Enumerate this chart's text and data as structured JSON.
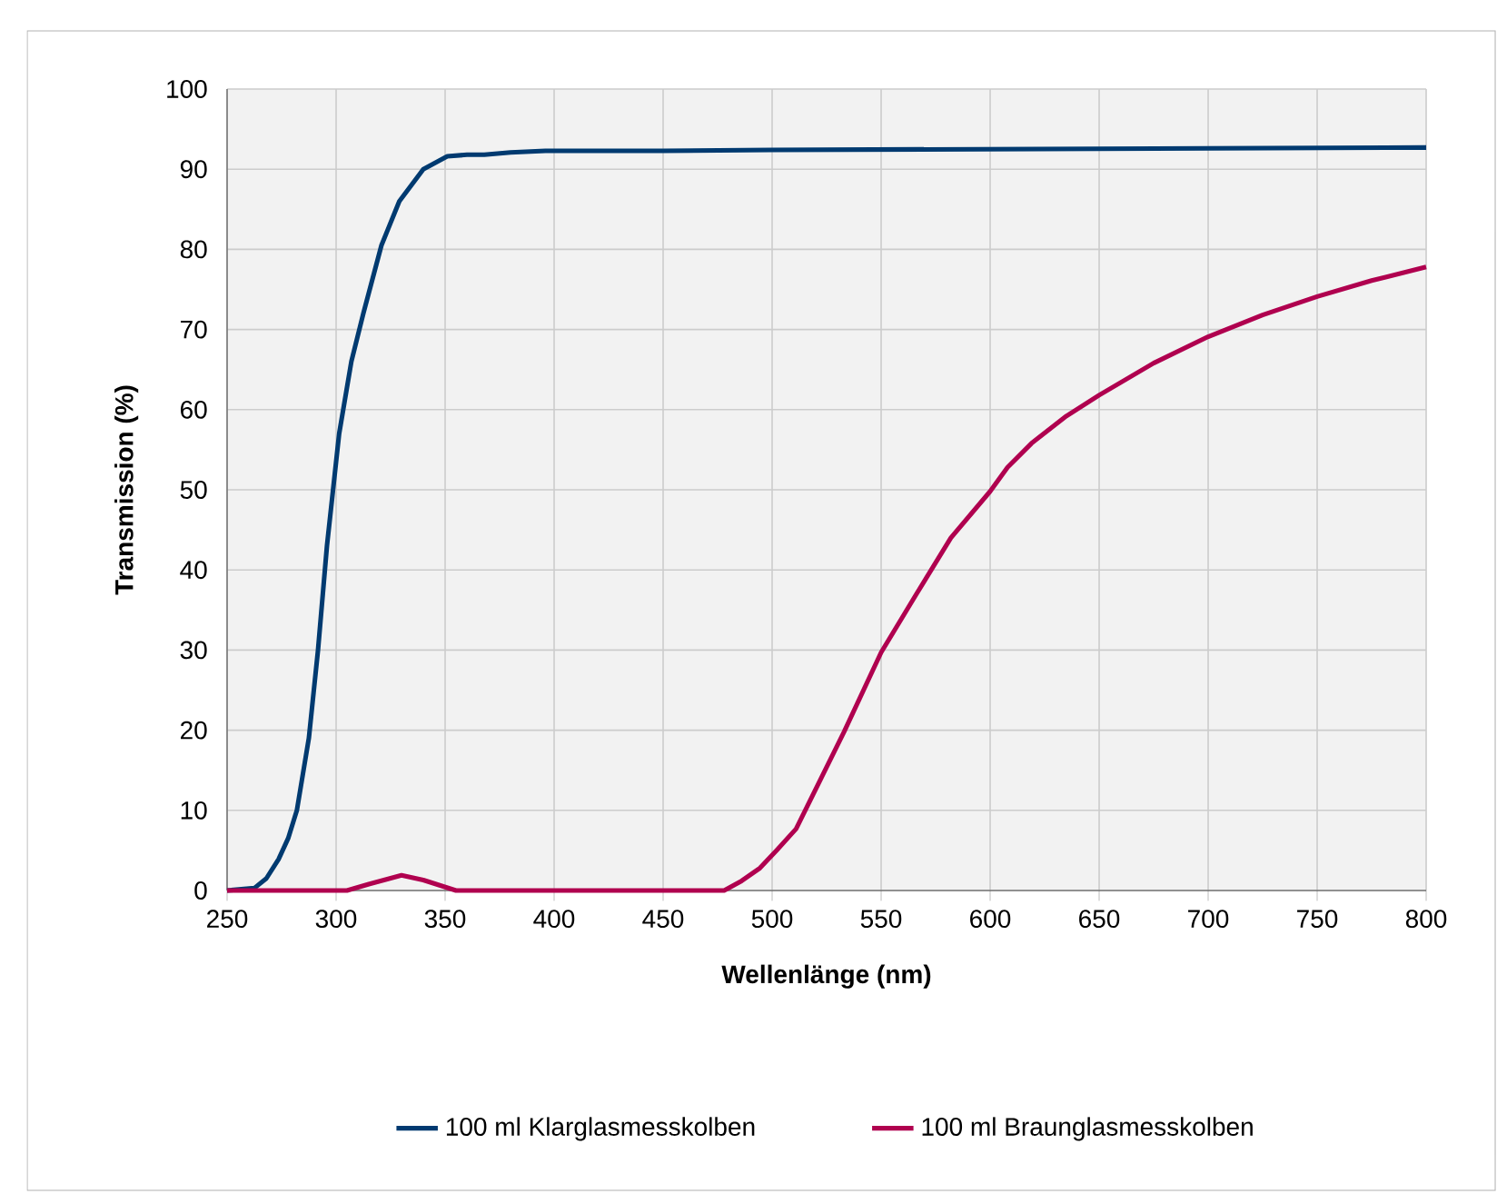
{
  "chart_data": {
    "type": "line",
    "xlabel": "Wellenlänge (nm)",
    "ylabel": "Transmission  (%)",
    "xlim": [
      250,
      800
    ],
    "ylim": [
      0,
      100
    ],
    "xticks": [
      250,
      300,
      350,
      400,
      450,
      500,
      550,
      600,
      650,
      700,
      750,
      800
    ],
    "yticks": [
      0,
      10,
      20,
      30,
      40,
      50,
      60,
      70,
      80,
      90,
      100
    ],
    "grid": true,
    "legend": "bottom",
    "marker": "none",
    "line_style": "solid",
    "series": [
      {
        "name": "100 ml Klarglasmesskolben",
        "color": "#003a70",
        "x": [
          250,
          262.5,
          268,
          273.6,
          278,
          282,
          287.5,
          291.7,
          295.8,
          301.4,
          307,
          312.5,
          320.8,
          329,
          340,
          351,
          360,
          368,
          380,
          396,
          450,
          500,
          600,
          700,
          800
        ],
        "values": [
          0,
          0.3,
          1.5,
          3.9,
          6.5,
          10,
          19,
          30,
          43,
          57,
          66,
          72,
          80.5,
          86,
          90,
          91.6,
          91.8,
          91.8,
          92.1,
          92.3,
          92.3,
          92.4,
          92.5,
          92.6,
          92.7
        ]
      },
      {
        "name": "100 ml Braunglasmesskolben",
        "color": "#b0004f",
        "x": [
          250,
          305,
          315,
          330,
          340,
          355,
          400,
          478,
          486,
          494.4,
          502,
          511,
          533,
          550,
          566,
          582,
          600,
          608,
          619,
          635,
          650,
          675,
          700,
          725,
          750,
          775,
          800
        ],
        "values": [
          0,
          0,
          0.8,
          1.9,
          1.3,
          0,
          0,
          0,
          1.2,
          2.8,
          5,
          7.7,
          19.8,
          29.7,
          36.9,
          44,
          49.8,
          52.8,
          55.8,
          59.2,
          61.8,
          65.8,
          69.1,
          71.8,
          74.1,
          76.1,
          77.8
        ]
      }
    ]
  }
}
